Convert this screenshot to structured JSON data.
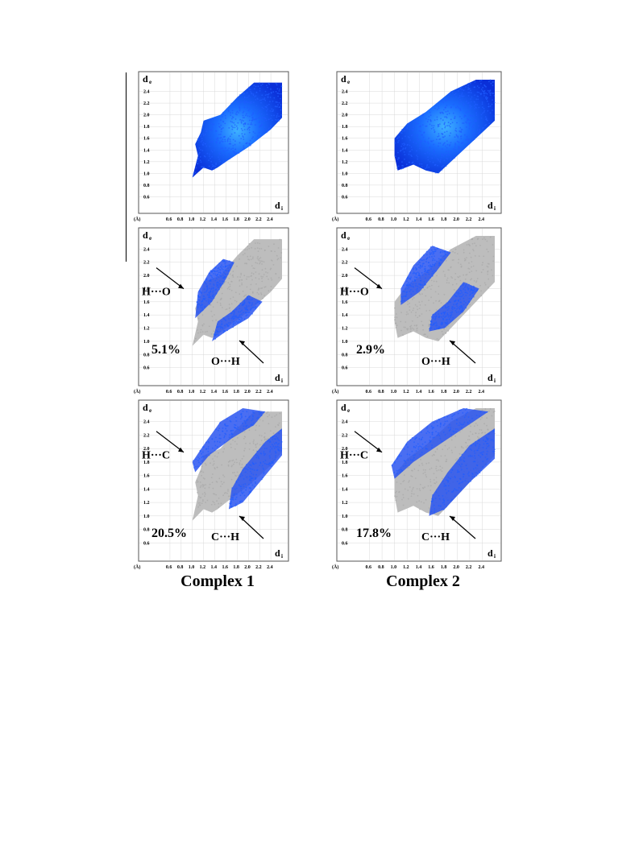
{
  "axis": {
    "de_label": "d",
    "de_sub": "e",
    "di_label": "d",
    "di_sub": "i",
    "unit_label": "(Å)",
    "x_ticks": [
      "0.6",
      "0.8",
      "1.0",
      "1.2",
      "1.4",
      "1.6",
      "1.8",
      "2.0",
      "2.2",
      "2.4"
    ],
    "y_ticks": [
      "0.6",
      "0.8",
      "1.0",
      "1.2",
      "1.4",
      "1.6",
      "1.8",
      "2.0",
      "2.2",
      "2.4"
    ],
    "xlim": [
      0.4,
      2.6
    ],
    "ylim": [
      0.4,
      2.6
    ]
  },
  "colors": {
    "full": "#1f5cff",
    "background_cloud": "#bdbdbd",
    "frame": "#555555",
    "grid": "#d9d9d9"
  },
  "columns": [
    {
      "title": "Complex 1"
    },
    {
      "title": "Complex 2"
    }
  ],
  "chart_data": [
    {
      "type": "scatter",
      "complex": "Complex 1",
      "panel": "full",
      "series": [
        {
          "name": "",
          "region": "full fingerprint"
        }
      ]
    },
    {
      "type": "scatter",
      "complex": "Complex 2",
      "panel": "full",
      "series": [
        {
          "name": "",
          "region": "full fingerprint"
        }
      ]
    },
    {
      "type": "scatter",
      "complex": "Complex 1",
      "panel": "O-H",
      "annotations": {
        "upper": "H···O",
        "lower": "O···H",
        "percent": "5.1%"
      }
    },
    {
      "type": "scatter",
      "complex": "Complex 2",
      "panel": "O-H",
      "annotations": {
        "upper": "H···O",
        "lower": "O···H",
        "percent": "2.9%"
      }
    },
    {
      "type": "scatter",
      "complex": "Complex 1",
      "panel": "C-H",
      "annotations": {
        "upper": "H···C",
        "lower": "C···H",
        "percent": "20.5%"
      }
    },
    {
      "type": "scatter",
      "complex": "Complex 2",
      "panel": "C-H",
      "annotations": {
        "upper": "H···C",
        "lower": "C···H",
        "percent": "17.8%"
      }
    }
  ]
}
